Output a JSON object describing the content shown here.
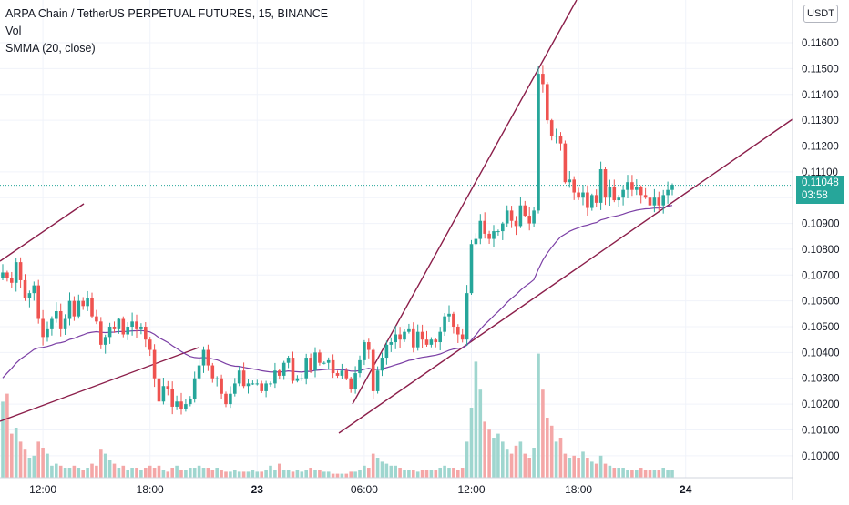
{
  "header": {
    "title": "ARPA Chain / TetherUS PERPETUAL FUTURES, 15, BINANCE",
    "indicator_1": "Vol",
    "indicator_2": "SMMA (20, close)"
  },
  "currency_label": "USDT",
  "last_price": {
    "value": "0.11048",
    "countdown": "03:58"
  },
  "colors": {
    "up": "#26a69a",
    "down": "#ef5350",
    "vol_up": "#9fd6cf",
    "vol_down": "#f4a7a7",
    "smma": "#7b3fa5",
    "trendline": "#8b1e4a",
    "price_line": "#26a69a"
  },
  "chart_data": {
    "type": "candlestick",
    "title": "ARPA Chain / TetherUS PERPETUAL FUTURES, 15, BINANCE",
    "ylim": [
      0.0995,
      0.1172
    ],
    "y_ticks": [
      "0.11600",
      "0.11500",
      "0.11400",
      "0.11300",
      "0.11200",
      "0.11100",
      "0.11000",
      "0.10900",
      "0.10800",
      "0.10700",
      "0.10600",
      "0.10500",
      "0.10400",
      "0.10300",
      "0.10200",
      "0.10100",
      "0.10000"
    ],
    "y_tick_values": [
      0.116,
      0.115,
      0.114,
      0.113,
      0.112,
      0.111,
      0.11,
      0.109,
      0.108,
      0.107,
      0.106,
      0.105,
      0.104,
      0.103,
      0.102,
      0.101,
      0.1
    ],
    "x_ticks": [
      {
        "label": "12:00",
        "idx": 9
      },
      {
        "label": "18:00",
        "idx": 33
      },
      {
        "label": "23",
        "idx": 57
      },
      {
        "label": "06:00",
        "idx": 81
      },
      {
        "label": "12:00",
        "idx": 105
      },
      {
        "label": "18:00",
        "idx": 129
      },
      {
        "label": "24",
        "idx": 153
      }
    ],
    "closes": [
      0.1071,
      0.1069,
      0.1067,
      0.1075,
      0.1068,
      0.1061,
      0.1063,
      0.1066,
      0.1053,
      0.1046,
      0.1049,
      0.1053,
      0.1056,
      0.1049,
      0.1053,
      0.106,
      0.1054,
      0.106,
      0.1058,
      0.1061,
      0.1054,
      0.1052,
      0.1043,
      0.1046,
      0.105,
      0.1049,
      0.1053,
      0.1047,
      0.105,
      0.1052,
      0.1049,
      0.105,
      0.1045,
      0.1041,
      0.103,
      0.1021,
      0.1027,
      0.1026,
      0.1019,
      0.1021,
      0.1018,
      0.102,
      0.1022,
      0.103,
      0.1035,
      0.1041,
      0.1035,
      0.103,
      0.103,
      0.1024,
      0.102,
      0.1024,
      0.1028,
      0.1033,
      0.1027,
      0.1028,
      0.1028,
      0.1028,
      0.1025,
      0.1028,
      0.1028,
      0.1033,
      0.1031,
      0.1036,
      0.1038,
      0.1029,
      0.103,
      0.103,
      0.1038,
      0.1033,
      0.104,
      0.1036,
      0.1036,
      0.1037,
      0.1032,
      0.1031,
      0.1033,
      0.103,
      0.1026,
      0.1032,
      0.1037,
      0.1044,
      0.1041,
      0.1025,
      0.1033,
      0.1038,
      0.1043,
      0.1044,
      0.1047,
      0.1045,
      0.1048,
      0.1049,
      0.1042,
      0.1048,
      0.1045,
      0.1043,
      0.1045,
      0.1044,
      0.1048,
      0.1054,
      0.1055,
      0.105,
      0.1047,
      0.1045,
      0.1063,
      0.1082,
      0.1084,
      0.1091,
      0.1086,
      0.1084,
      0.1087,
      0.1087,
      0.109,
      0.1095,
      0.1091,
      0.1089,
      0.1097,
      0.1093,
      0.109,
      0.1095,
      0.1148,
      0.1144,
      0.113,
      0.1124,
      0.1124,
      0.1121,
      0.1106,
      0.1107,
      0.1102,
      0.11,
      0.1102,
      0.1096,
      0.1101,
      0.1098,
      0.1111,
      0.11,
      0.1104,
      0.1099,
      0.11,
      0.1103,
      0.1106,
      0.1103,
      0.1104,
      0.1101,
      0.11,
      0.1097,
      0.11,
      0.1097,
      0.1101,
      0.1103,
      0.1105
    ],
    "volume_scale": [
      0,
      1
    ],
    "volumes": [
      0.38,
      0.42,
      0.22,
      0.25,
      0.18,
      0.14,
      0.1,
      0.11,
      0.18,
      0.15,
      0.12,
      0.06,
      0.07,
      0.06,
      0.05,
      0.05,
      0.06,
      0.05,
      0.04,
      0.05,
      0.07,
      0.06,
      0.14,
      0.12,
      0.09,
      0.07,
      0.05,
      0.06,
      0.04,
      0.05,
      0.05,
      0.04,
      0.05,
      0.06,
      0.05,
      0.06,
      0.04,
      0.03,
      0.05,
      0.06,
      0.04,
      0.04,
      0.05,
      0.05,
      0.06,
      0.05,
      0.05,
      0.04,
      0.05,
      0.04,
      0.03,
      0.03,
      0.04,
      0.03,
      0.03,
      0.03,
      0.04,
      0.03,
      0.03,
      0.04,
      0.06,
      0.04,
      0.07,
      0.04,
      0.04,
      0.03,
      0.04,
      0.03,
      0.04,
      0.05,
      0.04,
      0.04,
      0.03,
      0.03,
      0.02,
      0.02,
      0.02,
      0.02,
      0.03,
      0.03,
      0.04,
      0.06,
      0.05,
      0.12,
      0.1,
      0.08,
      0.07,
      0.06,
      0.06,
      0.05,
      0.04,
      0.04,
      0.04,
      0.03,
      0.04,
      0.04,
      0.04,
      0.04,
      0.05,
      0.06,
      0.05,
      0.05,
      0.04,
      0.05,
      0.18,
      0.35,
      0.58,
      0.44,
      0.28,
      0.24,
      0.2,
      0.22,
      0.18,
      0.14,
      0.12,
      0.16,
      0.18,
      0.12,
      0.1,
      0.15,
      0.62,
      0.44,
      0.3,
      0.26,
      0.18,
      0.2,
      0.12,
      0.1,
      0.11,
      0.1,
      0.13,
      0.1,
      0.08,
      0.07,
      0.11,
      0.07,
      0.06,
      0.05,
      0.05,
      0.05,
      0.04,
      0.04,
      0.04,
      0.05,
      0.04,
      0.04,
      0.04,
      0.04,
      0.05,
      0.04,
      0.04
    ],
    "smma_start": 0.1028
  }
}
